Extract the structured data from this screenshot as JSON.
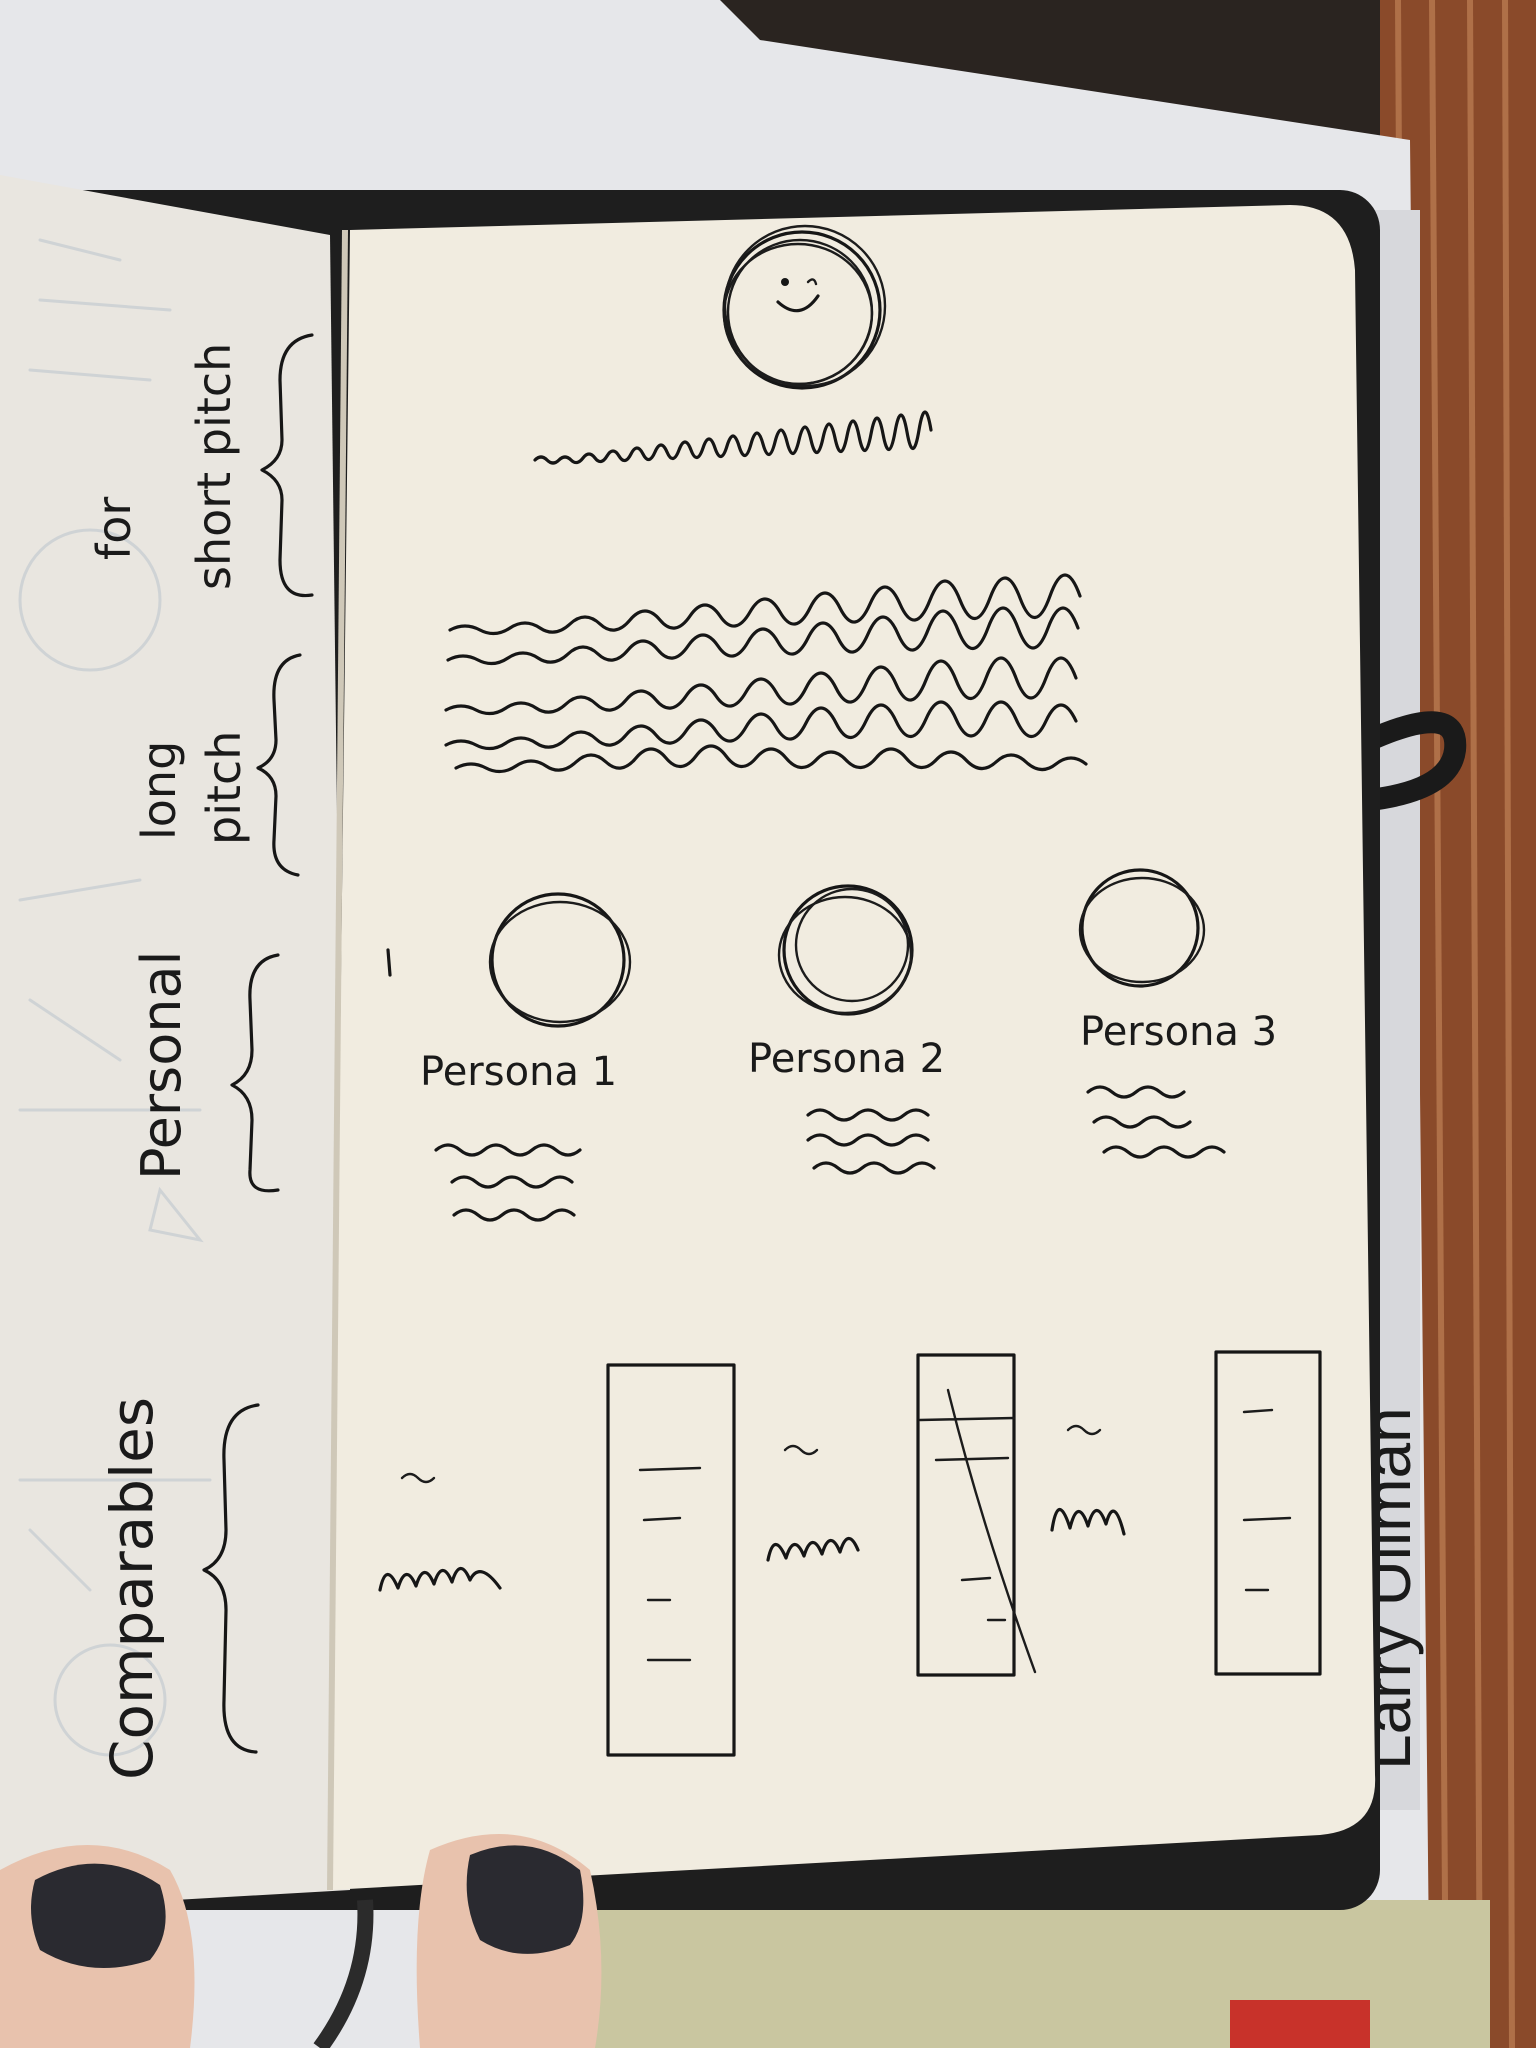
{
  "scene": {
    "colors": {
      "table_wood": "#8a4a2a",
      "wood_light": "#c98a5c",
      "white_box": "#e6e7ea",
      "page_right": "#f1ece0",
      "page_left": "#e9e6e0",
      "ink": "#161616",
      "nail_polish": "#2a2a30",
      "skin": "#e8c2ad",
      "elastic_band": "#1a1a1a",
      "ghost_ink": "#b9c3cc"
    }
  },
  "left_page": {
    "annotations": [
      {
        "text": "for short pitch"
      },
      {
        "text": "long pitch"
      },
      {
        "text": "Personal"
      },
      {
        "text": "Comparables"
      }
    ],
    "for_word": "for",
    "short_pitch": "short pitch",
    "long_word": "long",
    "pitch_word": "pitch",
    "personal": "Personal",
    "comparables": "Comparables"
  },
  "right_page": {
    "personas": [
      {
        "label": "Persona 1"
      },
      {
        "label": "Persona 2"
      },
      {
        "label": "Persona 3"
      }
    ]
  },
  "book_spine_text": "Larry Ullman"
}
